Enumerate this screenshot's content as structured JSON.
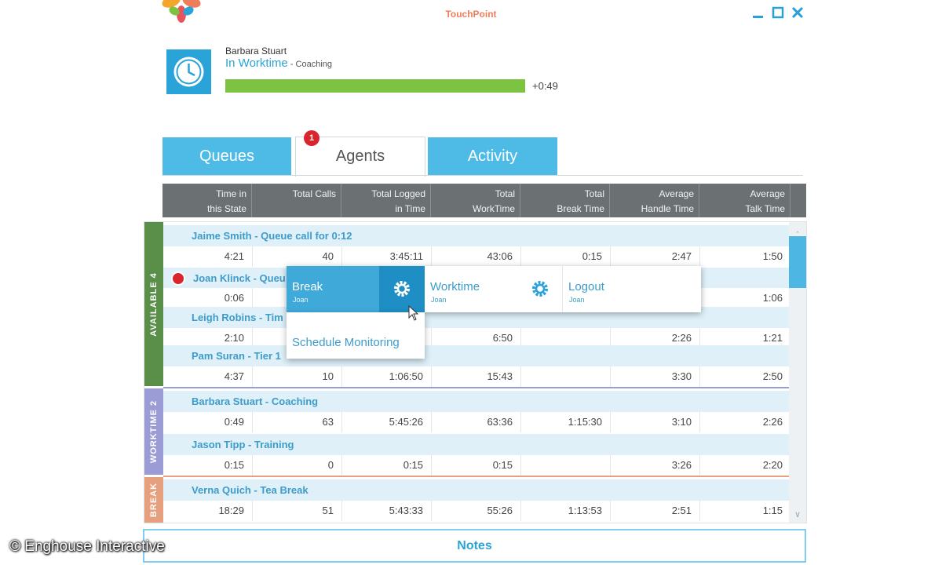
{
  "app": {
    "title": "TouchPoint",
    "window_controls": [
      "minimize",
      "maximize",
      "close"
    ]
  },
  "status": {
    "user": "Barbara Stuart",
    "state": "In Worktime",
    "state_detail": " - Coaching",
    "elapsed": "+0:49",
    "progress_fraction": 1.0
  },
  "tabs": [
    {
      "label": "Queues",
      "active": false
    },
    {
      "label": "Agents",
      "active": true,
      "badge": "1"
    },
    {
      "label": "Activity",
      "active": false
    }
  ],
  "columns": [
    {
      "line1": "Time in",
      "line2": "this State"
    },
    {
      "line1": "Total Calls",
      "line2": ""
    },
    {
      "line1": "Total Logged",
      "line2": "in Time"
    },
    {
      "line1": "Total",
      "line2": "WorkTime"
    },
    {
      "line1": "Total",
      "line2": "Break Time"
    },
    {
      "line1": "Average",
      "line2": "Handle Time"
    },
    {
      "line1": "Average",
      "line2": "Talk Time"
    }
  ],
  "groups": [
    {
      "label": "AVAILABLE 4",
      "color": "#5a8f4a"
    },
    {
      "label": "WORKTIME 2",
      "color": "#9b9bd6"
    },
    {
      "label": "BREAK",
      "color": "#e7a07d"
    }
  ],
  "agents": [
    {
      "name": "Jaime Smith - Queue call for 0:12",
      "values": [
        "4:21",
        "40",
        "3:45:11",
        "43:06",
        "0:15",
        "2:47",
        "1:50"
      ]
    },
    {
      "name": "Joan Klinck - Queu",
      "values": [
        "0:06",
        "",
        "",
        "",
        "",
        "",
        "1:06"
      ]
    },
    {
      "name": "Leigh Robins - Tim",
      "values": [
        "2:10",
        "",
        "",
        "6:50",
        "",
        "2:26",
        "1:21"
      ]
    },
    {
      "name": "Pam Suran - Tier 1",
      "values": [
        "4:37",
        "10",
        "1:06:50",
        "15:43",
        "",
        "3:30",
        "2:50"
      ]
    },
    {
      "name": "Barbara Stuart - Coaching",
      "values": [
        "0:49",
        "63",
        "5:45:26",
        "63:36",
        "1:15:30",
        "3:10",
        "2:26"
      ]
    },
    {
      "name": "Jason Tipp - Training",
      "values": [
        "0:15",
        "0",
        "0:15",
        "0:15",
        "",
        "3:26",
        "2:20"
      ]
    },
    {
      "name": "Verna Quich - Tea Break",
      "values": [
        "18:29",
        "51",
        "5:43:33",
        "55:26",
        "1:13:53",
        "2:51",
        "1:15"
      ]
    }
  ],
  "context_menu": {
    "items": [
      {
        "label": "Break",
        "sub": "Joan"
      },
      {
        "label": "Worktime",
        "sub": "Joan"
      },
      {
        "label": "Logout",
        "sub": "Joan"
      }
    ],
    "secondary": "Schedule Monitoring"
  },
  "notes_label": "Notes",
  "copyright": "© Enghouse Interactive",
  "colors": {
    "accent": "#2aa3d8",
    "tab": "#4dbbe6",
    "progress": "#7cc342",
    "header": "#6b7173",
    "row_name_bg": "#dff0f9",
    "badge": "#d9262c"
  }
}
